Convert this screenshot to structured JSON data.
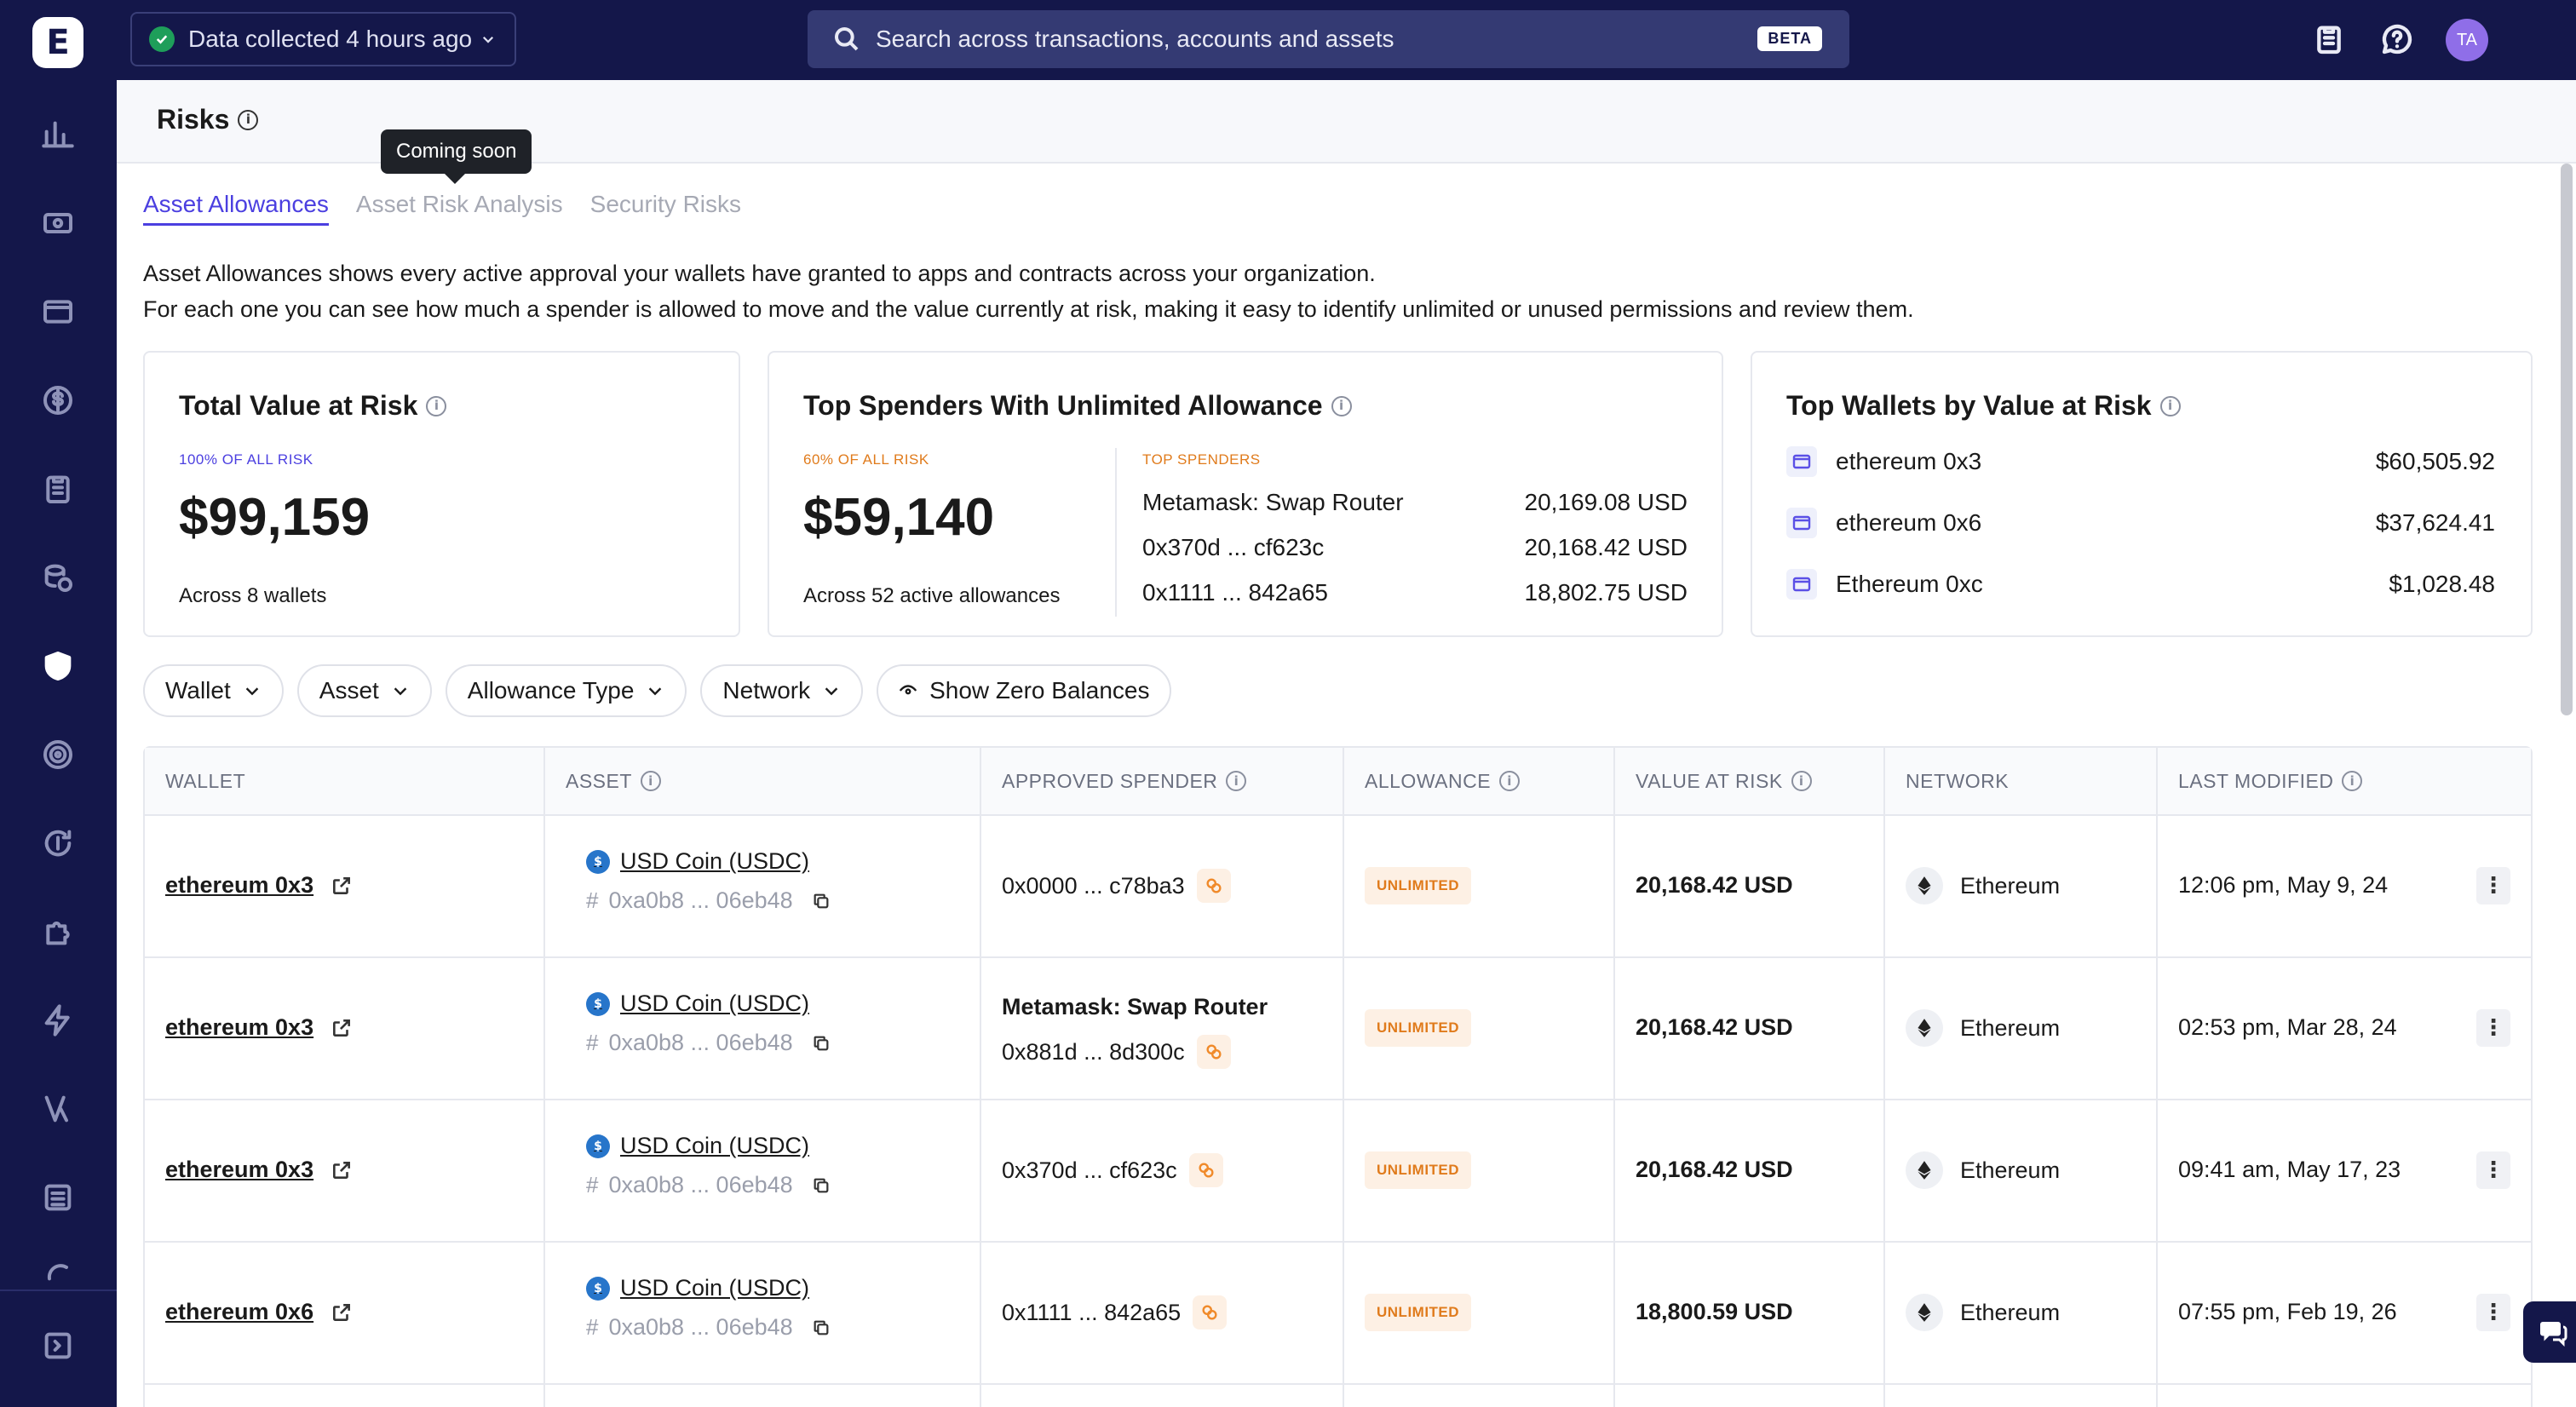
{
  "app": {
    "logo_letter": "E"
  },
  "topbar": {
    "status_text": "Data collected 4 hours ago",
    "search_placeholder": "Search across transactions, accounts and assets",
    "search_badge": "BETA",
    "avatar_initials": "TA"
  },
  "page": {
    "title": "Risks",
    "tooltip": "Coming soon",
    "tabs": [
      {
        "label": "Asset Allowances"
      },
      {
        "label": "Asset Risk Analysis"
      },
      {
        "label": "Security Risks"
      }
    ],
    "description_line1": "Asset Allowances shows every active approval your wallets have granted to apps and contracts across your organization.",
    "description_line2": "For each one you can see how much a spender is allowed to move and the value currently at risk, making it easy to identify unlimited or unused permissions and review them."
  },
  "cards": {
    "total": {
      "title": "Total Value at Risk",
      "kicker": "100% OF ALL RISK",
      "value": "$99,159",
      "sub": "Across 8 wallets"
    },
    "spenders": {
      "title": "Top Spenders With Unlimited Allowance",
      "kicker": "60% OF ALL RISK",
      "value": "$59,140",
      "sub": "Across 52 active allowances",
      "list_label": "TOP SPENDERS",
      "items": [
        {
          "name": "Metamask: Swap Router",
          "value": "20,169.08 USD"
        },
        {
          "name": "0x370d ... cf623c",
          "value": "20,168.42 USD"
        },
        {
          "name": "0x1111 ... 842a65",
          "value": "18,802.75 USD"
        }
      ]
    },
    "wallets": {
      "title": "Top Wallets by Value at Risk",
      "items": [
        {
          "name": "ethereum 0x3",
          "value": "$60,505.92"
        },
        {
          "name": "ethereum 0x6",
          "value": "$37,624.41"
        },
        {
          "name": "Ethereum 0xc",
          "value": "$1,028.48"
        }
      ]
    }
  },
  "filters": {
    "wallet": "Wallet",
    "asset": "Asset",
    "allowance_type": "Allowance Type",
    "network": "Network",
    "zero": "Show Zero Balances"
  },
  "table": {
    "headers": {
      "wallet": "WALLET",
      "asset": "ASSET",
      "spender": "APPROVED SPENDER",
      "allowance": "ALLOWANCE",
      "var": "VALUE AT RISK",
      "network": "NETWORK",
      "modified": "LAST MODIFIED"
    },
    "rows": [
      {
        "wallet": "ethereum 0x3",
        "asset": "USD Coin (USDC)",
        "asset_addr": "0xa0b8 ... 06eb48",
        "spender_name": "",
        "spender_addr": "0x0000 ... c78ba3",
        "allowance": "UNLIMITED",
        "var": "20,168.42 USD",
        "network": "Ethereum",
        "modified": "12:06 pm, May 9, 24"
      },
      {
        "wallet": "ethereum 0x3",
        "asset": "USD Coin (USDC)",
        "asset_addr": "0xa0b8 ... 06eb48",
        "spender_name": "Metamask: Swap Router",
        "spender_addr": "0x881d ... 8d300c",
        "allowance": "UNLIMITED",
        "var": "20,168.42 USD",
        "network": "Ethereum",
        "modified": "02:53 pm, Mar 28, 24"
      },
      {
        "wallet": "ethereum 0x3",
        "asset": "USD Coin (USDC)",
        "asset_addr": "0xa0b8 ... 06eb48",
        "spender_name": "",
        "spender_addr": "0x370d ... cf623c",
        "allowance": "UNLIMITED",
        "var": "20,168.42 USD",
        "network": "Ethereum",
        "modified": "09:41 am, May 17, 23"
      },
      {
        "wallet": "ethereum 0x6",
        "asset": "USD Coin (USDC)",
        "asset_addr": "0xa0b8 ... 06eb48",
        "spender_name": "",
        "spender_addr": "0x1111 ... 842a65",
        "allowance": "UNLIMITED",
        "var": "18,800.59 USD",
        "network": "Ethereum",
        "modified": "07:55 pm, Feb 19, 26"
      }
    ]
  },
  "icons": {
    "sidebar": [
      "chart-icon",
      "wallet-cash-icon",
      "folder-icon",
      "dollar-icon",
      "clipboard-icon",
      "coins-info-icon",
      "shield-icon",
      "target-icon",
      "refresh-dollar-icon",
      "puzzle-icon",
      "lightning-icon",
      "v-logo-icon",
      "list-icon",
      "partial-icon",
      "expand-icon"
    ]
  },
  "colors": {
    "sidebar": "#14174a",
    "accent": "#4b3fe0",
    "badge": "#e07b1c"
  }
}
